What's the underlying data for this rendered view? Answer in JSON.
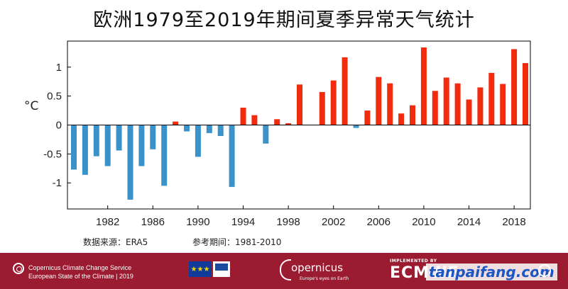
{
  "chart_data": {
    "type": "bar",
    "title": "欧洲1979至2019年期间夏季异常天气统计",
    "ylabel": "°C",
    "xlabel": "",
    "ylim": [
      -1.45,
      1.45
    ],
    "x": [
      1979,
      1980,
      1981,
      1982,
      1983,
      1984,
      1985,
      1986,
      1987,
      1988,
      1989,
      1990,
      1991,
      1992,
      1993,
      1994,
      1995,
      1996,
      1997,
      1998,
      1999,
      2000,
      2001,
      2002,
      2003,
      2004,
      2005,
      2006,
      2007,
      2008,
      2009,
      2010,
      2011,
      2012,
      2013,
      2014,
      2015,
      2016,
      2017,
      2018,
      2019
    ],
    "values": [
      -0.77,
      -0.86,
      -0.54,
      -0.71,
      -0.44,
      -1.29,
      -0.71,
      -0.42,
      -1.05,
      0.06,
      -0.11,
      -0.55,
      -0.14,
      -0.19,
      -1.07,
      0.3,
      0.17,
      -0.32,
      0.1,
      0.03,
      0.7,
      null,
      0.57,
      0.77,
      1.17,
      -0.05,
      0.25,
      0.83,
      0.72,
      0.2,
      0.34,
      1.34,
      0.59,
      0.82,
      0.72,
      0.44,
      0.65,
      0.9,
      0.71,
      1.31,
      1.07
    ],
    "x_ticks": [
      1982,
      1986,
      1990,
      1994,
      1998,
      2002,
      2006,
      2010,
      2014,
      2018
    ],
    "x_tick_labels": [
      "1982",
      "1986",
      "1990",
      "1994",
      "1998",
      "2002",
      "2006",
      "2010",
      "2014",
      "2018"
    ],
    "y_ticks": [
      -1,
      -0.5,
      0,
      0.5,
      1
    ],
    "y_tick_labels": [
      "-1",
      "-0.5",
      "0",
      "0.5",
      "1"
    ],
    "colors": {
      "positive": "#f42a0f",
      "negative": "#3a92c9",
      "axis": "#000000"
    },
    "grid": false,
    "legend": "none"
  },
  "notes": {
    "source": "数据来源：ERA5",
    "reference": "参考期间：1981-2010"
  },
  "footer": {
    "service_line1": "Copernicus Climate Change Service",
    "service_line2": "European State of the Climate | 2019",
    "eu_subtext": "European Commission",
    "copernicus_name": "opernicus",
    "copernicus_tagline": "Europe's eyes on Earth",
    "implemented_by": "IMPLEMENTED BY",
    "ecmwf": "ECMWF",
    "watermark": "tanpaifang.com",
    "eu_stars": "★★★",
    "colors": {
      "background": "#9b1b30",
      "text": "#ffffff"
    }
  }
}
